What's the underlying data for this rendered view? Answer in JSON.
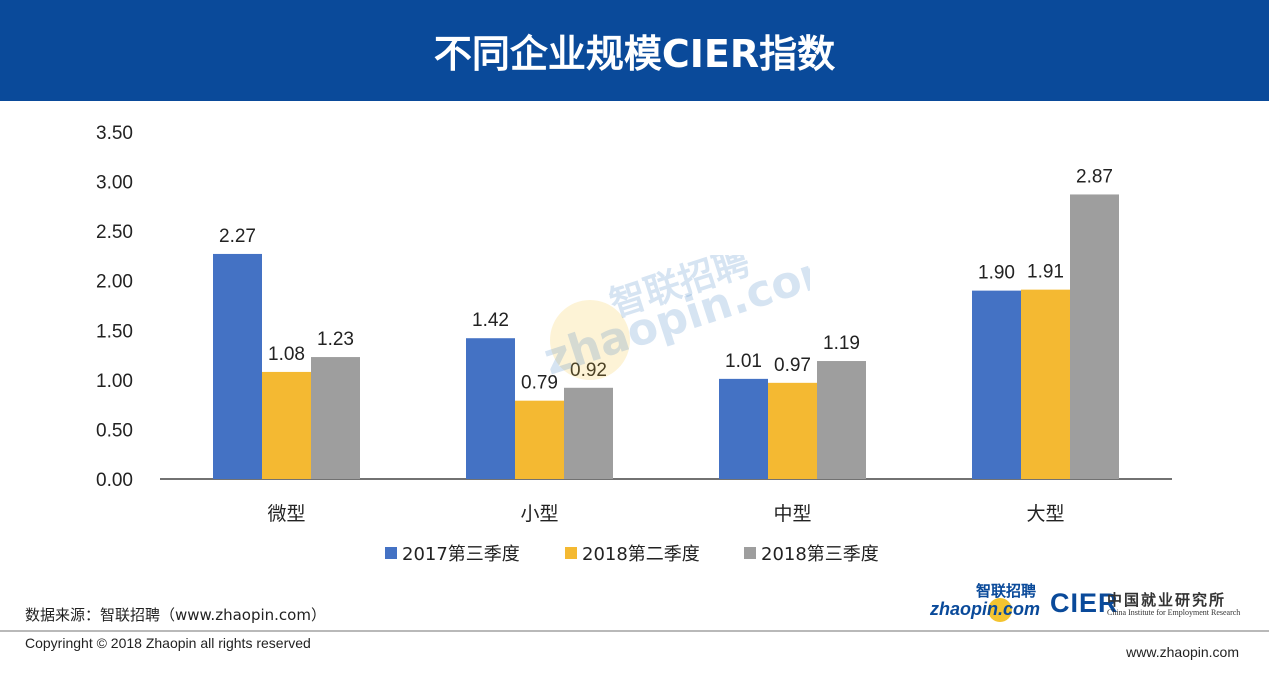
{
  "header": {
    "title": "不同企业规模CIER指数"
  },
  "colors": {
    "banner": "#0a4a9a",
    "series": [
      "#4472c4",
      "#f4b932",
      "#9e9e9e"
    ]
  },
  "chart_data": {
    "type": "bar",
    "title": "不同企业规模CIER指数",
    "categories": [
      "微型",
      "小型",
      "中型",
      "大型"
    ],
    "series": [
      {
        "name": "2017第三季度",
        "values": [
          2.27,
          1.42,
          1.01,
          1.9
        ]
      },
      {
        "name": "2018第二季度",
        "values": [
          1.08,
          0.79,
          0.97,
          1.91
        ]
      },
      {
        "name": "2018第三季度",
        "values": [
          1.23,
          0.92,
          1.19,
          2.87
        ]
      }
    ],
    "value_labels": [
      [
        "2.27",
        "1.42",
        "1.01",
        "1.90"
      ],
      [
        "1.08",
        "0.79",
        "0.97",
        "1.91"
      ],
      [
        "1.23",
        "0.92",
        "1.19",
        "2.87"
      ]
    ],
    "yticks": [
      "0.00",
      "0.50",
      "1.00",
      "1.50",
      "2.00",
      "2.50",
      "3.00",
      "3.50"
    ],
    "ylim": [
      0,
      3.5
    ],
    "xlabel": "",
    "ylabel": "",
    "grid": false,
    "legend_position": "bottom"
  },
  "watermark": {
    "cn": "智联招聘",
    "en": "zhaopin.com"
  },
  "footer": {
    "source": "数据来源：智联招聘（www.zhaopin.com）",
    "copyright": "Copyringht © 2018 Zhaopin all rights reserved",
    "website": "www.zhaopin.com"
  },
  "logos": {
    "zhaopin_cn": "智联招聘",
    "zhaopin_en": "zhaopin.com",
    "cier_mark": "CIER",
    "cier_cn": "中国就业研究所",
    "cier_en": "China Institute for Employment Research"
  }
}
